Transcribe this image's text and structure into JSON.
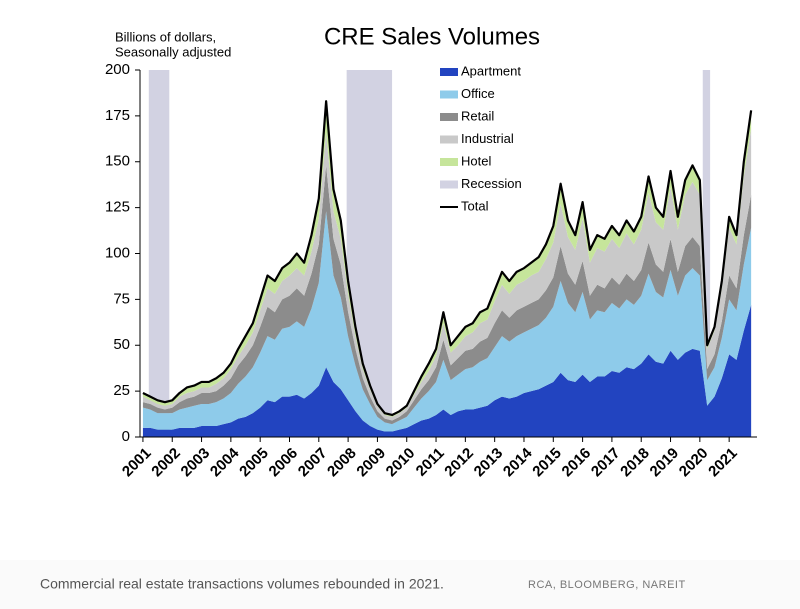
{
  "chart_data": {
    "type": "stacked_area",
    "title": "CRE Sales Volumes",
    "y_axis_label": [
      "Billions of dollars,",
      "Seasonally adjusted"
    ],
    "caption": "Commercial real estate transactions volumes rebounded in 2021.",
    "source": "RCA, BLOOMBERG, NAREIT",
    "xlim": [
      2000.9,
      2021.95
    ],
    "xticks": [
      2001,
      2002,
      2003,
      2004,
      2005,
      2006,
      2007,
      2008,
      2009,
      2010,
      2011,
      2012,
      2013,
      2014,
      2015,
      2016,
      2017,
      2018,
      2019,
      2020,
      2021
    ],
    "ylim": [
      0,
      200
    ],
    "yticks": [
      0,
      25,
      50,
      75,
      100,
      125,
      150,
      175,
      200
    ],
    "legend": "top-right",
    "x": [
      2001,
      2001.25,
      2001.5,
      2001.75,
      2002,
      2002.25,
      2002.5,
      2002.75,
      2003,
      2003.25,
      2003.5,
      2003.75,
      2004,
      2004.25,
      2004.5,
      2004.75,
      2005,
      2005.25,
      2005.5,
      2005.75,
      2006,
      2006.25,
      2006.5,
      2006.75,
      2007,
      2007.25,
      2007.5,
      2007.75,
      2008,
      2008.25,
      2008.5,
      2008.75,
      2009,
      2009.25,
      2009.5,
      2009.75,
      2010,
      2010.25,
      2010.5,
      2010.75,
      2011,
      2011.25,
      2011.5,
      2011.75,
      2012,
      2012.25,
      2012.5,
      2012.75,
      2013,
      2013.25,
      2013.5,
      2013.75,
      2014,
      2014.25,
      2014.5,
      2014.75,
      2015,
      2015.25,
      2015.5,
      2015.75,
      2016,
      2016.25,
      2016.5,
      2016.75,
      2017,
      2017.25,
      2017.5,
      2017.75,
      2018,
      2018.25,
      2018.5,
      2018.75,
      2019,
      2019.25,
      2019.5,
      2019.75,
      2020,
      2020.25,
      2020.5,
      2020.75,
      2021,
      2021.25,
      2021.5,
      2021.75
    ],
    "series": [
      {
        "name": "Apartment",
        "color": "#2244c0",
        "values": [
          5,
          5,
          4,
          4,
          4,
          5,
          5,
          5,
          6,
          6,
          6,
          7,
          8,
          10,
          11,
          13,
          16,
          20,
          19,
          22,
          22,
          23,
          21,
          24,
          28,
          38,
          30,
          26,
          20,
          14,
          9,
          6,
          4,
          3,
          3,
          4,
          5,
          7,
          9,
          10,
          12,
          15,
          12,
          14,
          15,
          15,
          16,
          17,
          20,
          22,
          21,
          22,
          24,
          25,
          26,
          28,
          30,
          35,
          31,
          30,
          34,
          30,
          33,
          33,
          36,
          35,
          38,
          37,
          40,
          45,
          41,
          40,
          47,
          42,
          46,
          48,
          47,
          17,
          22,
          32,
          45,
          42,
          58,
          72
        ]
      },
      {
        "name": "Office",
        "color": "#8ecbea",
        "values": [
          11,
          10,
          9,
          9,
          9,
          10,
          11,
          12,
          12,
          12,
          13,
          14,
          16,
          19,
          22,
          25,
          30,
          35,
          34,
          37,
          38,
          40,
          39,
          46,
          56,
          85,
          58,
          50,
          35,
          25,
          17,
          12,
          7,
          5,
          4,
          5,
          6,
          9,
          12,
          15,
          18,
          27,
          19,
          20,
          22,
          23,
          25,
          26,
          29,
          33,
          31,
          33,
          33,
          34,
          35,
          37,
          41,
          50,
          42,
          38,
          45,
          34,
          36,
          35,
          37,
          35,
          37,
          35,
          37,
          44,
          38,
          36,
          44,
          35,
          42,
          44,
          41,
          14,
          16,
          22,
          30,
          27,
          36,
          42
        ]
      },
      {
        "name": "Retail",
        "color": "#8c8c8c",
        "values": [
          3,
          3,
          3,
          2,
          3,
          4,
          5,
          5,
          6,
          6,
          6,
          7,
          8,
          10,
          11,
          12,
          14,
          16,
          15,
          16,
          17,
          18,
          17,
          19,
          21,
          25,
          20,
          18,
          13,
          9,
          6,
          4,
          3,
          2,
          2,
          2,
          3,
          4,
          5,
          6,
          8,
          11,
          8,
          9,
          10,
          10,
          11,
          11,
          13,
          14,
          13,
          14,
          14,
          14,
          14,
          15,
          16,
          19,
          16,
          15,
          17,
          13,
          14,
          13,
          14,
          13,
          14,
          13,
          14,
          17,
          15,
          14,
          17,
          13,
          16,
          17,
          16,
          6,
          7,
          9,
          13,
          12,
          16,
          18
        ]
      },
      {
        "name": "Industrial",
        "color": "#c9c9c9",
        "values": [
          3,
          2,
          2,
          2,
          2,
          3,
          3,
          3,
          3,
          3,
          4,
          4,
          5,
          5,
          6,
          7,
          9,
          10,
          10,
          10,
          11,
          11,
          11,
          12,
          14,
          18,
          15,
          14,
          10,
          7,
          5,
          4,
          3,
          2,
          2,
          2,
          2,
          3,
          4,
          5,
          6,
          9,
          7,
          7,
          8,
          9,
          10,
          10,
          12,
          14,
          13,
          14,
          14,
          15,
          15,
          17,
          19,
          23,
          20,
          19,
          23,
          18,
          20,
          20,
          21,
          20,
          22,
          20,
          22,
          27,
          23,
          23,
          28,
          23,
          28,
          30,
          28,
          11,
          13,
          18,
          26,
          24,
          32,
          36
        ]
      },
      {
        "name": "Hotel",
        "color": "#c6e59b",
        "values": [
          2,
          2,
          2,
          2,
          2,
          2,
          3,
          3,
          3,
          3,
          3,
          3,
          3,
          4,
          5,
          5,
          6,
          7,
          7,
          7,
          7,
          8,
          7,
          9,
          11,
          17,
          12,
          10,
          7,
          5,
          3,
          2,
          1,
          1,
          1,
          1,
          1,
          2,
          3,
          4,
          4,
          6,
          4,
          5,
          5,
          5,
          6,
          6,
          6,
          7,
          7,
          7,
          7,
          7,
          8,
          8,
          9,
          11,
          9,
          8,
          9,
          7,
          7,
          7,
          7,
          7,
          7,
          7,
          7,
          9,
          8,
          7,
          9,
          7,
          8,
          9,
          8,
          2,
          2,
          4,
          6,
          5,
          8,
          10
        ]
      }
    ],
    "total": {
      "name": "Total",
      "color": "#000000",
      "values": [
        24,
        22,
        20,
        19,
        20,
        24,
        27,
        28,
        30,
        30,
        32,
        35,
        40,
        48,
        55,
        62,
        75,
        88,
        85,
        92,
        95,
        100,
        95,
        110,
        130,
        183,
        135,
        118,
        85,
        60,
        40,
        28,
        18,
        13,
        12,
        14,
        17,
        25,
        33,
        40,
        48,
        68,
        50,
        55,
        60,
        62,
        68,
        70,
        80,
        90,
        85,
        90,
        92,
        95,
        98,
        105,
        115,
        138,
        118,
        110,
        128,
        102,
        110,
        108,
        115,
        110,
        118,
        112,
        120,
        142,
        125,
        120,
        145,
        120,
        140,
        148,
        140,
        50,
        60,
        85,
        120,
        110,
        150,
        178
      ]
    },
    "recession": {
      "name": "Recession",
      "color": "#d2d2e2",
      "periods": [
        [
          2001.2,
          2001.9
        ],
        [
          2007.95,
          2009.5
        ],
        [
          2020.1,
          2020.35
        ]
      ]
    }
  }
}
